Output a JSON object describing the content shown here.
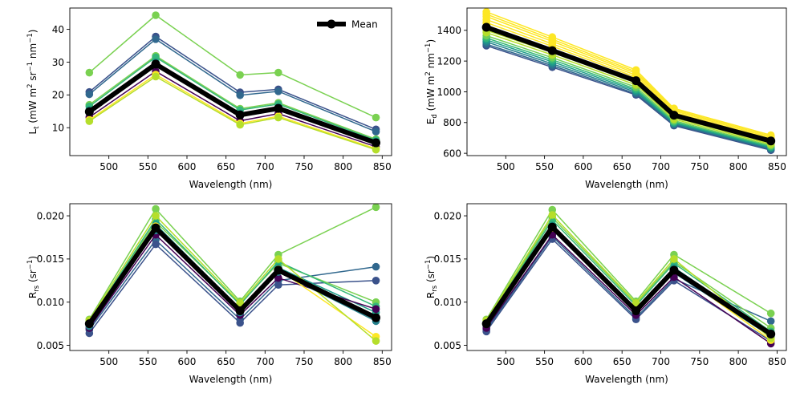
{
  "figure": {
    "wavelengths": [
      475,
      560,
      668,
      717,
      842
    ]
  },
  "chart_data": [
    {
      "type": "line",
      "panel": "top-left",
      "xlabel": "Wavelength (nm)",
      "ylabel": {
        "base": "L",
        "sub": "t",
        "rest": " (mW m",
        "sup1": "2",
        "rest2": " sr",
        "sup2": "−1",
        "rest3": " nm",
        "sup3": "−1",
        "end": ")"
      },
      "xlim": [
        450,
        862
      ],
      "ylim": [
        1.5,
        46.5
      ],
      "xticks": [
        500,
        550,
        600,
        650,
        700,
        750,
        800,
        850
      ],
      "yticks": [
        10,
        20,
        30,
        40
      ],
      "ytick_labels": [
        "10",
        "20",
        "30",
        "40"
      ],
      "legend": {
        "placement": "top-right",
        "label": "Mean"
      },
      "x": [
        475,
        560,
        668,
        717,
        842
      ],
      "series": [
        {
          "color": "#7ad151",
          "values": [
            26.8,
            44.3,
            26.1,
            26.8,
            13.1
          ]
        },
        {
          "color": "#3b528b",
          "values": [
            20.9,
            37.8,
            20.8,
            21.7,
            9.5
          ]
        },
        {
          "color": "#31688e",
          "values": [
            20.2,
            37.0,
            19.9,
            21.1,
            8.8
          ]
        },
        {
          "color": "#7ad151",
          "values": [
            17.0,
            31.9,
            15.8,
            17.6,
            6.5
          ]
        },
        {
          "color": "#35b779",
          "values": [
            16.5,
            31.5,
            15.4,
            17.2,
            6.2
          ]
        },
        {
          "color": "#1f9e89",
          "values": [
            15.5,
            30.0,
            14.4,
            16.3,
            5.8
          ]
        },
        {
          "color": "#26828e",
          "values": [
            14.5,
            29.0,
            13.5,
            15.5,
            5.3
          ]
        },
        {
          "color": "#440154",
          "values": [
            13.2,
            27.2,
            12.1,
            14.3,
            4.2
          ]
        },
        {
          "color": "#fde725",
          "values": [
            12.4,
            26.2,
            11.3,
            13.5,
            3.6
          ]
        },
        {
          "color": "#b5de2b",
          "values": [
            12.0,
            25.6,
            10.9,
            13.1,
            3.3
          ]
        }
      ],
      "mean": [
        14.9,
        29.4,
        13.9,
        15.9,
        5.4
      ]
    },
    {
      "type": "line",
      "panel": "top-right",
      "xlabel": "Wavelength (nm)",
      "ylabel": {
        "base": "E",
        "sub": "d",
        "rest": " (mW m",
        "sup1": "2",
        "rest2": " nm",
        "sup2": "−1",
        "end": ")"
      },
      "xlim": [
        450,
        862
      ],
      "ylim": [
        585,
        1545
      ],
      "xticks": [
        500,
        550,
        600,
        650,
        700,
        750,
        800,
        850
      ],
      "yticks": [
        600,
        800,
        1000,
        1200,
        1400
      ],
      "ytick_labels": [
        "600",
        "800",
        "1000",
        "1200",
        "1400"
      ],
      "x": [
        475,
        560,
        668,
        717,
        842
      ],
      "series": [
        {
          "color": "#3b528b",
          "values": [
            1300,
            1160,
            980,
            780,
            620
          ]
        },
        {
          "color": "#31688e",
          "values": [
            1310,
            1170,
            988,
            786,
            626
          ]
        },
        {
          "color": "#26828e",
          "values": [
            1325,
            1182,
            998,
            792,
            632
          ]
        },
        {
          "color": "#1f9e89",
          "values": [
            1338,
            1195,
            1008,
            798,
            638
          ]
        },
        {
          "color": "#35b779",
          "values": [
            1350,
            1208,
            1018,
            804,
            644
          ]
        },
        {
          "color": "#6ece58",
          "values": [
            1365,
            1222,
            1030,
            812,
            650
          ]
        },
        {
          "color": "#b5de2b",
          "values": [
            1385,
            1240,
            1045,
            822,
            658
          ]
        },
        {
          "color": "#b5de2b",
          "values": [
            1400,
            1255,
            1058,
            832,
            666
          ]
        },
        {
          "color": "#fde725",
          "values": [
            1430,
            1280,
            1080,
            845,
            678
          ]
        },
        {
          "color": "#fde725",
          "values": [
            1450,
            1296,
            1095,
            856,
            686
          ]
        },
        {
          "color": "#fde725",
          "values": [
            1470,
            1312,
            1108,
            866,
            694
          ]
        },
        {
          "color": "#fde725",
          "values": [
            1490,
            1328,
            1120,
            876,
            702
          ]
        },
        {
          "color": "#fde725",
          "values": [
            1505,
            1342,
            1130,
            884,
            710
          ]
        },
        {
          "color": "#fde725",
          "values": [
            1520,
            1356,
            1142,
            892,
            718
          ]
        }
      ],
      "mean": [
        1420,
        1268,
        1072,
        848,
        680
      ]
    },
    {
      "type": "line",
      "panel": "bottom-left",
      "xlabel": "Wavelength (nm)",
      "ylabel": {
        "base": "R",
        "sub": "rs",
        "rest": " (sr",
        "sup1": "−1",
        "end": ")"
      },
      "xlim": [
        450,
        862
      ],
      "ylim": [
        0.0044,
        0.0214
      ],
      "xticks": [
        500,
        550,
        600,
        650,
        700,
        750,
        800,
        850
      ],
      "yticks": [
        0.005,
        0.01,
        0.015,
        0.02
      ],
      "ytick_labels": [
        "0.005",
        "0.010",
        "0.015",
        "0.020"
      ],
      "x": [
        475,
        560,
        668,
        717,
        842
      ],
      "series": [
        {
          "color": "#7ad151",
          "values": [
            0.008,
            0.0208,
            0.0101,
            0.0155,
            0.021
          ]
        },
        {
          "color": "#31688e",
          "values": [
            0.0068,
            0.0172,
            0.008,
            0.0125,
            0.0141
          ]
        },
        {
          "color": "#3b528b",
          "values": [
            0.0064,
            0.0167,
            0.0076,
            0.012,
            0.0125
          ]
        },
        {
          "color": "#7ad151",
          "values": [
            0.0078,
            0.0193,
            0.0098,
            0.0145,
            0.01
          ]
        },
        {
          "color": "#35b779",
          "values": [
            0.0077,
            0.0196,
            0.0097,
            0.0147,
            0.0095
          ]
        },
        {
          "color": "#1f9e89",
          "values": [
            0.0074,
            0.019,
            0.0092,
            0.014,
            0.0088
          ]
        },
        {
          "color": "#440154",
          "values": [
            0.007,
            0.0178,
            0.0085,
            0.0128,
            0.0092
          ]
        },
        {
          "color": "#26828e",
          "values": [
            0.0072,
            0.0183,
            0.0088,
            0.0135,
            0.0078
          ]
        },
        {
          "color": "#fde725",
          "values": [
            0.0075,
            0.0188,
            0.009,
            0.0138,
            0.006
          ]
        },
        {
          "color": "#b5de2b",
          "values": [
            0.0079,
            0.02,
            0.0099,
            0.015,
            0.0055
          ]
        }
      ],
      "mean": [
        0.0075,
        0.0186,
        0.009,
        0.0137,
        0.0082
      ]
    },
    {
      "type": "line",
      "panel": "bottom-right",
      "xlabel": "Wavelength (nm)",
      "ylabel": {
        "base": "R",
        "sub": "rs",
        "rest": " (sr",
        "sup1": "−1",
        "end": ")"
      },
      "xlim": [
        450,
        862
      ],
      "ylim": [
        0.0044,
        0.0214
      ],
      "xticks": [
        500,
        550,
        600,
        650,
        700,
        750,
        800,
        850
      ],
      "yticks": [
        0.005,
        0.01,
        0.015,
        0.02
      ],
      "ytick_labels": [
        "0.005",
        "0.010",
        "0.015",
        "0.020"
      ],
      "x": [
        475,
        560,
        668,
        717,
        842
      ],
      "series": [
        {
          "color": "#7ad151",
          "values": [
            0.008,
            0.0207,
            0.0101,
            0.0155,
            0.0087
          ]
        },
        {
          "color": "#31688e",
          "values": [
            0.0068,
            0.0176,
            0.0082,
            0.0127,
            0.0078
          ]
        },
        {
          "color": "#3b528b",
          "values": [
            0.0066,
            0.0173,
            0.008,
            0.0125,
            0.0055
          ]
        },
        {
          "color": "#7ad151",
          "values": [
            0.0078,
            0.0198,
            0.0098,
            0.0147,
            0.007
          ]
        },
        {
          "color": "#35b779",
          "values": [
            0.0077,
            0.0195,
            0.0096,
            0.0145,
            0.0066
          ]
        },
        {
          "color": "#1f9e89",
          "values": [
            0.0074,
            0.0189,
            0.0092,
            0.014,
            0.0064
          ]
        },
        {
          "color": "#26828e",
          "values": [
            0.0072,
            0.0184,
            0.0088,
            0.0134,
            0.006
          ]
        },
        {
          "color": "#440154",
          "values": [
            0.007,
            0.0178,
            0.0085,
            0.0129,
            0.0052
          ]
        },
        {
          "color": "#fde725",
          "values": [
            0.0075,
            0.0186,
            0.009,
            0.0137,
            0.0056
          ]
        },
        {
          "color": "#b5de2b",
          "values": [
            0.0079,
            0.0201,
            0.0099,
            0.015,
            0.0058
          ]
        }
      ],
      "mean": [
        0.0075,
        0.0187,
        0.009,
        0.0137,
        0.0063
      ]
    }
  ]
}
